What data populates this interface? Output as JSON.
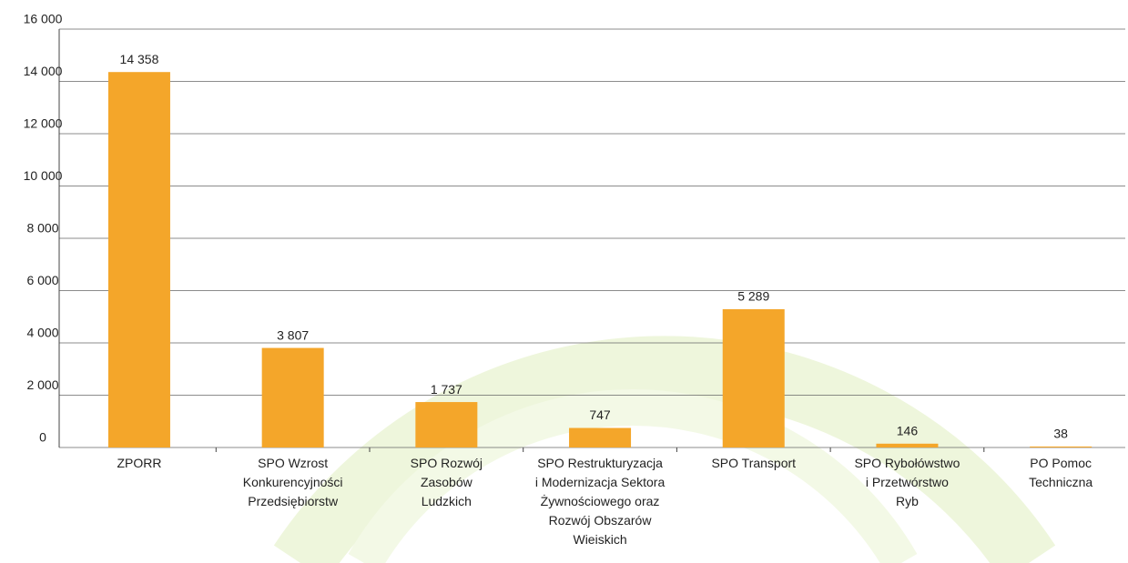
{
  "chart_data": {
    "type": "bar",
    "categories": [
      "ZPORR",
      "SPO Wzrost\nKonkurencyjności\nPrzedsiębiorstw",
      "SPO Rozwój\nZasobów\nLudzkich",
      "SPO Restrukturyzacja\ni Modernizacja Sektora\nŻywnościowego oraz\nRozwój Obszarów\nWieiskich",
      "SPO Transport",
      "SPO Rybołówstwo\ni Przetwórstwo\nRyb",
      "PO Pomoc\nTechniczna"
    ],
    "values": [
      14358,
      3807,
      1737,
      747,
      5289,
      146,
      38
    ],
    "value_labels": [
      "14 358",
      "3 807",
      "1 737",
      "747",
      "5 289",
      "146",
      "38"
    ],
    "color": "#f4a62a",
    "ylim": [
      0,
      16000
    ],
    "yticks": [
      0,
      {
        "value": 2000,
        "label": "2 000"
      },
      {
        "value": 4000,
        "label": "4 000"
      },
      {
        "value": 6000,
        "label": "6 000"
      },
      {
        "value": 8000,
        "label": "8 000"
      },
      {
        "value": 10000,
        "label": "10 000"
      },
      {
        "value": 12000,
        "label": "12 000"
      },
      {
        "value": 14000,
        "label": "14 000"
      },
      {
        "value": 16000,
        "label": "16 000"
      }
    ],
    "grid": true
  }
}
